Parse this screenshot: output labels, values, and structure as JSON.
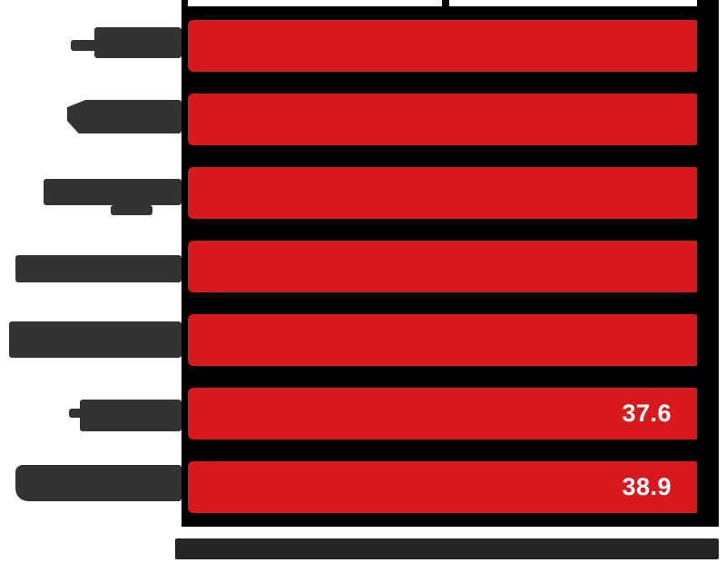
{
  "chart_data": {
    "type": "bar",
    "orientation": "horizontal",
    "title_redacted": true,
    "categories": [
      "[redacted]",
      "[redacted]",
      "[redacted]",
      "[redacted]",
      "[redacted]",
      "[redacted]",
      "[redacted]"
    ],
    "series": [
      {
        "name": "value",
        "values": [
          null,
          null,
          null,
          null,
          null,
          37.6,
          38.9
        ]
      }
    ],
    "value_labels": [
      "",
      "",
      "",
      "",
      "",
      "37.6",
      "38.9"
    ],
    "x_axis_caption": "[redacted]",
    "legend": "none",
    "grid": "one vertical gridline at mid-plot",
    "notes": "Category labels and axis caption are blacked-out redaction blobs; all bars visually extend to a black redaction column at the right edge; only the last two bars show value labels.",
    "colors": {
      "bar": "#d7191e",
      "plot_background": "#000000",
      "page_background": "#ffffff",
      "label_redaction": "#333333",
      "caption_band": "#242424",
      "value_text": "#ffffff",
      "axis_line": "#000000"
    }
  }
}
